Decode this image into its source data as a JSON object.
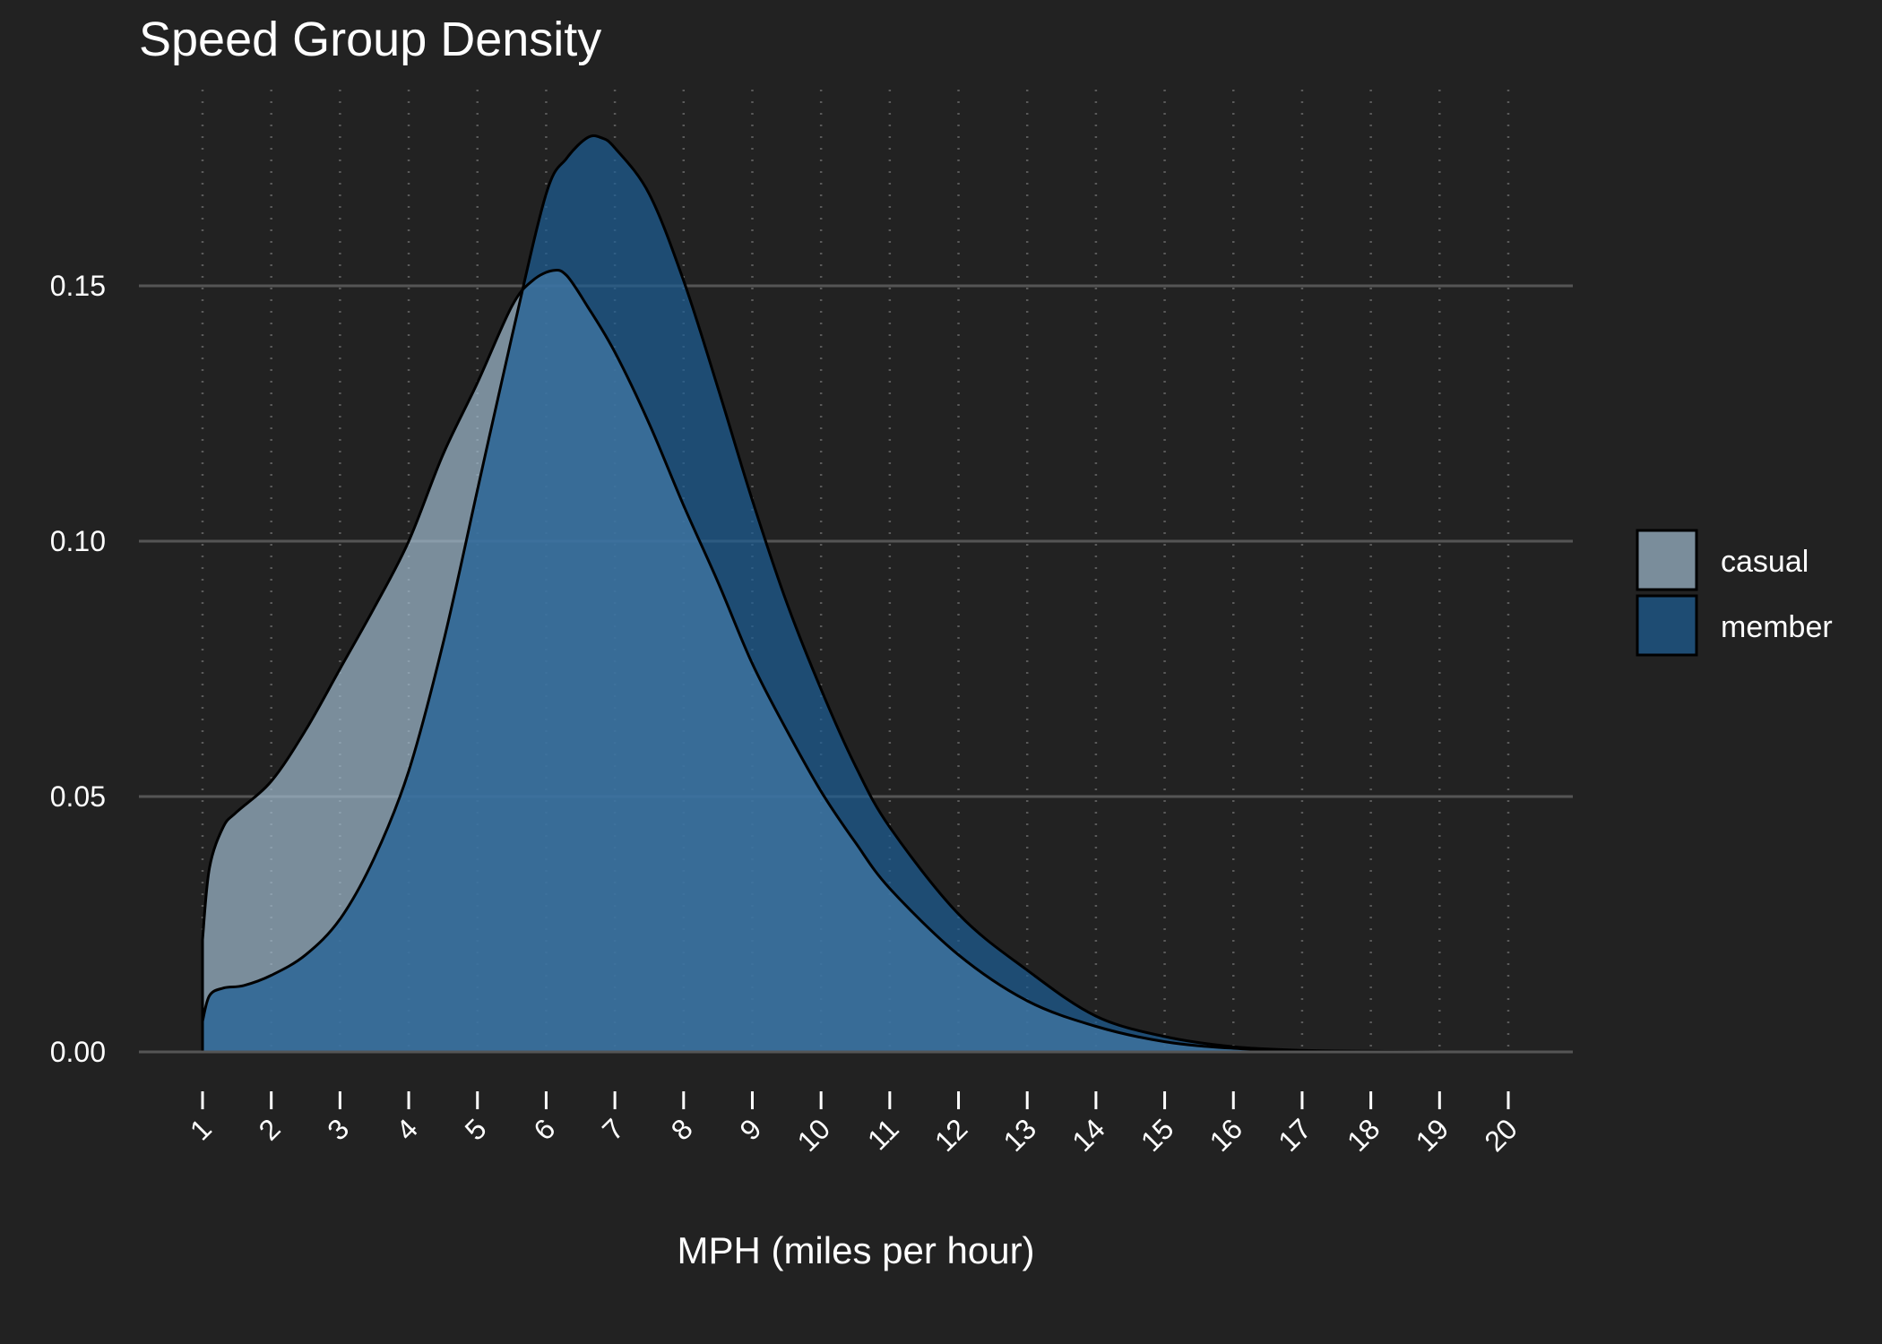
{
  "chart_data": {
    "type": "area",
    "title": "Speed Group Density",
    "xlabel": "MPH (miles per hour)",
    "ylabel": "",
    "xlim": [
      1,
      20
    ],
    "ylim": [
      0,
      0.18
    ],
    "x_ticks": [
      1,
      2,
      3,
      4,
      5,
      6,
      7,
      8,
      9,
      10,
      11,
      12,
      13,
      14,
      15,
      16,
      17,
      18,
      19,
      20
    ],
    "x_tick_labels": [
      "1",
      "2",
      "3",
      "4",
      "5",
      "6",
      "7",
      "8",
      "9",
      "10",
      "11",
      "12",
      "13",
      "14",
      "15",
      "16",
      "17",
      "18",
      "19",
      "20"
    ],
    "y_ticks": [
      0,
      0.05,
      0.1,
      0.15
    ],
    "y_tick_labels": [
      "0.00",
      "0.05",
      "0.10",
      "0.15"
    ],
    "grid": {
      "x_major_dotted": true,
      "y_major": true
    },
    "legend_position": "right",
    "series": [
      {
        "name": "casual",
        "color": "#9FBBCF",
        "x": [
          1.0,
          1.1,
          1.3,
          1.5,
          2.0,
          2.5,
          3.0,
          3.5,
          4.0,
          4.5,
          5.0,
          5.5,
          5.8,
          6.1,
          6.3,
          6.6,
          7.0,
          7.5,
          8.0,
          8.5,
          9.0,
          9.5,
          10.0,
          10.5,
          11.0,
          12.0,
          13.0,
          14.0,
          15.0,
          16.0,
          17.0,
          18.0,
          19.0,
          20.0
        ],
        "y": [
          0.022,
          0.036,
          0.044,
          0.047,
          0.053,
          0.063,
          0.075,
          0.087,
          0.1,
          0.117,
          0.131,
          0.146,
          0.151,
          0.153,
          0.152,
          0.146,
          0.137,
          0.123,
          0.107,
          0.092,
          0.076,
          0.063,
          0.051,
          0.041,
          0.032,
          0.019,
          0.01,
          0.005,
          0.002,
          0.0007,
          0.0002,
          0.0001,
          0.0,
          0.0
        ]
      },
      {
        "name": "member",
        "color": "#1C5E95",
        "x": [
          1.0,
          1.1,
          1.3,
          1.6,
          2.0,
          2.5,
          3.0,
          3.5,
          4.0,
          4.5,
          5.0,
          5.5,
          6.0,
          6.3,
          6.6,
          6.8,
          7.0,
          7.5,
          8.0,
          8.5,
          9.0,
          9.5,
          10.0,
          10.5,
          11.0,
          12.0,
          13.0,
          14.0,
          15.0,
          16.0,
          17.0,
          18.0,
          19.0,
          20.0
        ],
        "y": [
          0.006,
          0.011,
          0.0125,
          0.013,
          0.015,
          0.019,
          0.026,
          0.038,
          0.055,
          0.08,
          0.11,
          0.14,
          0.168,
          0.175,
          0.179,
          0.179,
          0.177,
          0.168,
          0.151,
          0.13,
          0.108,
          0.088,
          0.071,
          0.056,
          0.044,
          0.027,
          0.016,
          0.007,
          0.003,
          0.001,
          0.0003,
          0.0001,
          0.0,
          0.0
        ]
      }
    ]
  }
}
